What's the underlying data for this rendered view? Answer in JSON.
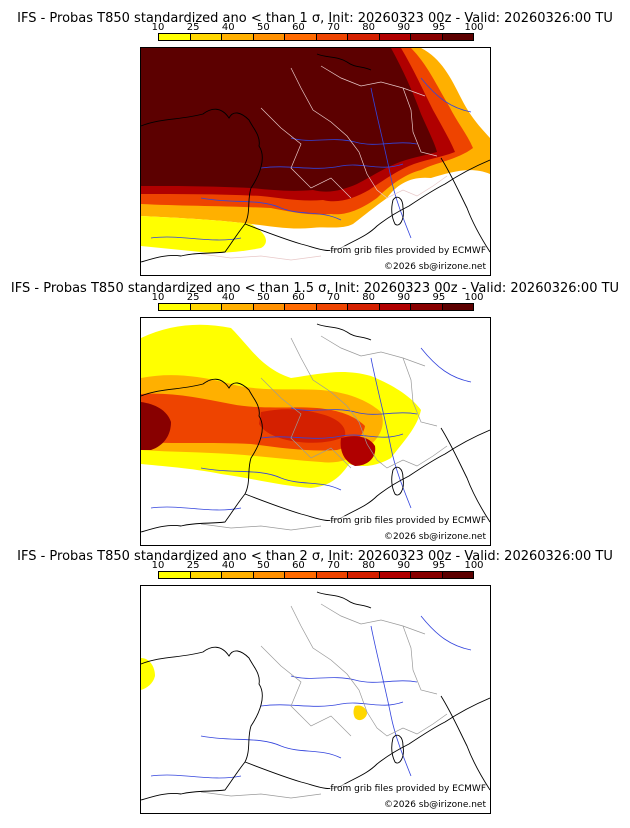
{
  "panels": [
    {
      "title": "IFS - Probas T850  standardized ano < than 1 σ, Init: 20260323 00z - Valid: 20260326:00 TU",
      "source": "from grib files provided by ECMWF",
      "copyright": "©2026 sb@irizone.net",
      "coverage": "high"
    },
    {
      "title": "IFS - Probas T850  standardized ano < than 1.5 σ, Init: 20260323 00z - Valid: 20260326:00 TU",
      "source": "from grib files provided by ECMWF",
      "copyright": "©2026 sb@irizone.net",
      "coverage": "medium"
    },
    {
      "title": "IFS - Probas T850  standardized ano < than 2 σ, Init: 20260323 00z - Valid: 20260326:00 TU",
      "source": "from grib files provided by ECMWF",
      "copyright": "©2026 sb@irizone.net",
      "coverage": "low"
    }
  ],
  "scale": {
    "ticks": [
      "10",
      "25",
      "40",
      "50",
      "60",
      "70",
      "80",
      "90",
      "95",
      "100"
    ],
    "colors": [
      "#ffff00",
      "#ffd700",
      "#ffb000",
      "#ff9000",
      "#ff6a00",
      "#ee4400",
      "#d42000",
      "#b00000",
      "#880000",
      "#5c0000"
    ]
  }
}
